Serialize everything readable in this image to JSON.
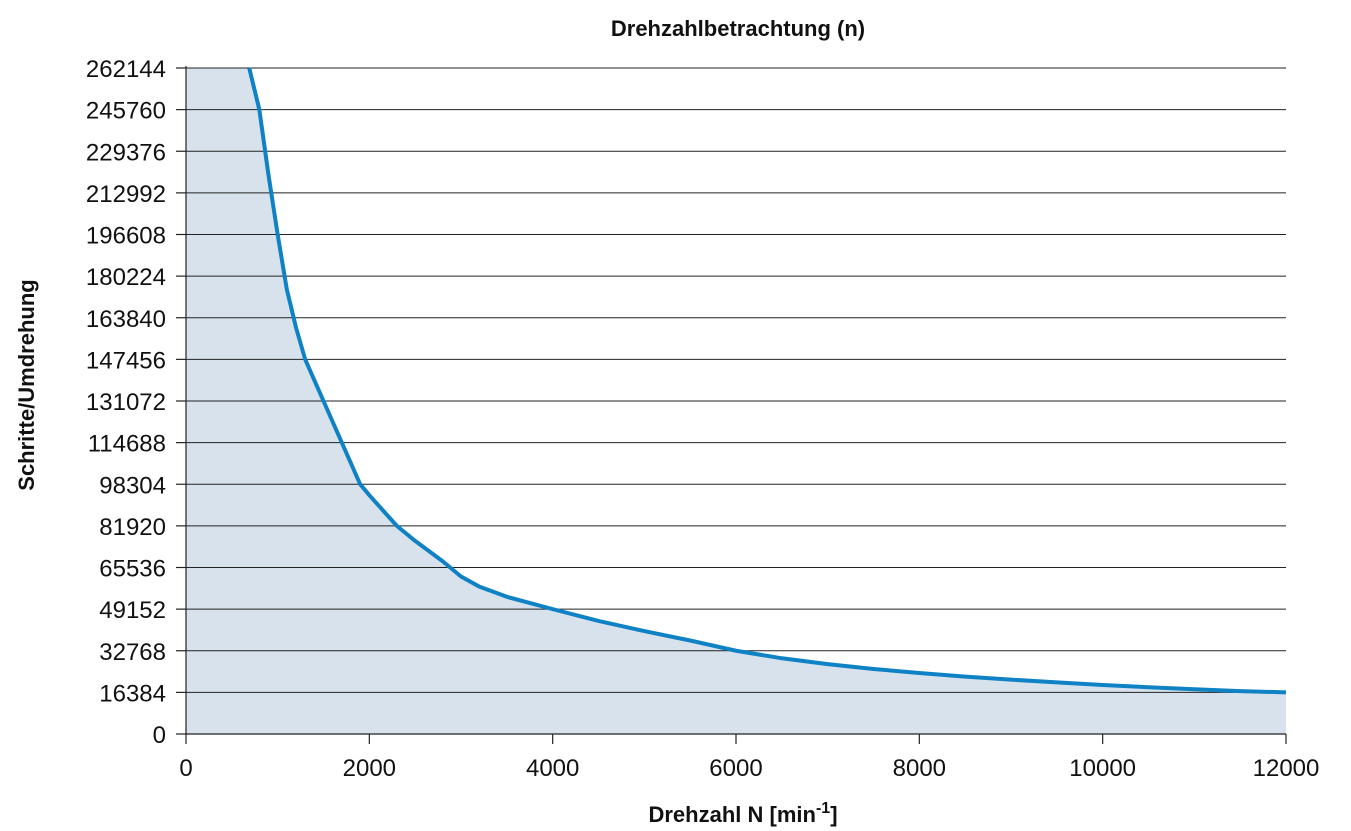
{
  "chart_data": {
    "type": "area",
    "title": "Drehzahlbetrachtung (n)",
    "xlabel": "Drehzahl N [min",
    "xlabel_sup": "-1",
    "xlabel_suffix": "]",
    "ylabel": "Schritte/Umdrehung",
    "xlim": [
      0,
      12000
    ],
    "ylim": [
      0,
      262144
    ],
    "x_ticks": [
      0,
      2000,
      4000,
      6000,
      8000,
      10000,
      12000
    ],
    "y_ticks": [
      0,
      16384,
      32768,
      49152,
      65536,
      81920,
      98304,
      114688,
      131072,
      147456,
      163840,
      180224,
      196608,
      212992,
      229376,
      245760,
      262144
    ],
    "grid": "horizontal",
    "line_color": "#0f82c6",
    "fill_color": "#d7e2ec",
    "series": [
      {
        "x": [
          690,
          800,
          900,
          1000,
          1100,
          1200,
          1300,
          1500,
          1700,
          1900,
          2000,
          2300,
          2500,
          2800,
          3000,
          3200,
          3500,
          4000,
          4500,
          5000,
          5500,
          6000,
          6500,
          7000,
          7500,
          8000,
          8500,
          9000,
          9500,
          10000,
          10500,
          11000,
          11500,
          12000
        ],
        "y": [
          262144,
          245760,
          220000,
          196608,
          175000,
          160000,
          147456,
          131072,
          114688,
          98304,
          94000,
          81920,
          76000,
          68000,
          62000,
          58000,
          54000,
          49152,
          44500,
          40500,
          36800,
          32768,
          29800,
          27500,
          25600,
          24000,
          22600,
          21400,
          20300,
          19300,
          18400,
          17600,
          16900,
          16384
        ]
      }
    ]
  }
}
